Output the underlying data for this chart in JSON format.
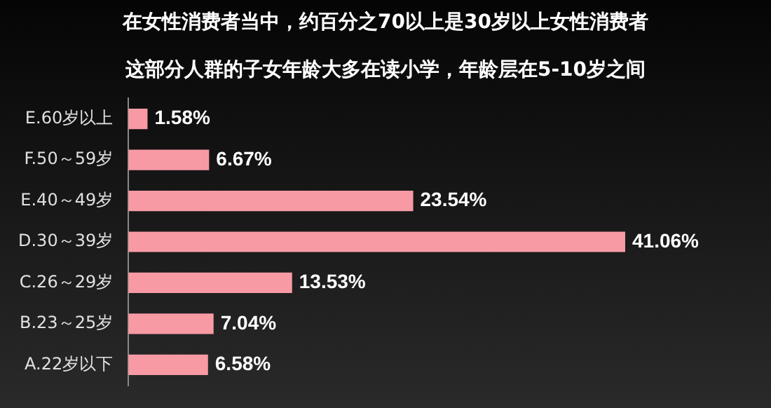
{
  "chart_data": {
    "type": "bar",
    "orientation": "horizontal",
    "title": "在女性消费者当中，约百分之70以上是30岁以上女性消费者",
    "subtitle": "这部分人群的子女年龄大多在读小学，年龄层在5-10岁之间",
    "categories": [
      "E.60岁以上",
      "F.50～59岁",
      "E.40～49岁",
      "D.30～39岁",
      "C.26～29岁",
      "B.23～25岁",
      "A.22岁以下"
    ],
    "values": [
      1.58,
      6.67,
      23.54,
      41.06,
      13.53,
      7.04,
      6.58
    ],
    "value_labels": [
      "1.58%",
      "6.67%",
      "23.54%",
      "41.06%",
      "13.53%",
      "7.04%",
      "6.58%"
    ],
    "color": "#f79aa4",
    "grid": false,
    "legend": false
  }
}
